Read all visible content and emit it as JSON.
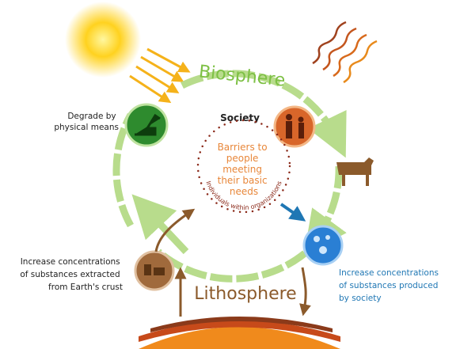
{
  "title_biosphere": "Biosphere",
  "title_lithosphere": "Lithosphere",
  "society": {
    "title": "Society",
    "barriers": [
      "Barriers to",
      "people",
      "meeting",
      "their basic",
      "needs"
    ],
    "ring": "Individuals within organizations"
  },
  "notes": {
    "degrade": [
      "Degrade by",
      "physical means"
    ],
    "extracted": [
      "Increase concentrations",
      "of substances extracted",
      "from Earth's crust"
    ],
    "produced": [
      "Increase concentrations",
      "of substances produced",
      "by society"
    ]
  }
}
